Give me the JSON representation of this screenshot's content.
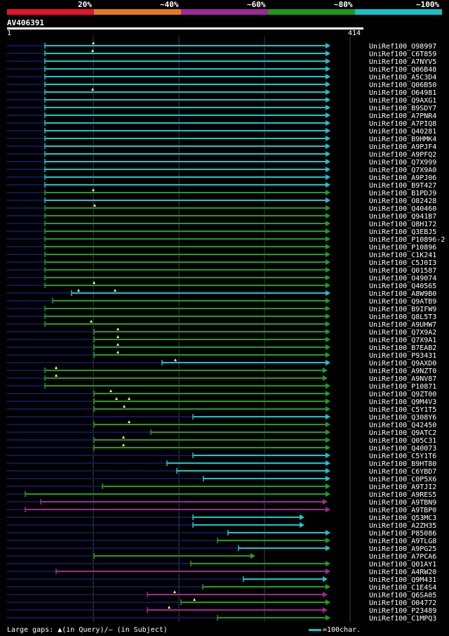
{
  "legend": [
    {
      "label": "20%",
      "color": "#e8132b"
    },
    {
      "label": "~40%",
      "color": "#e47a1c"
    },
    {
      "label": "~60%",
      "color": "#a0299a"
    },
    {
      "label": "~80%",
      "color": "#1a9a1a"
    },
    {
      "label": "~100%",
      "color": "#16c0c8"
    }
  ],
  "query": {
    "name": "AV406391",
    "start": "1",
    "end": "414"
  },
  "colors": {
    "cyan": "#16c8d0",
    "green": "#1ea01e",
    "purple": "#a0289a",
    "dark": "#0d1660",
    "grid": "#404040"
  },
  "hits": [
    {
      "name": "UniRef100_O98997",
      "color": "cyan",
      "start": 64,
      "end": 464,
      "marks": [
        133
      ]
    },
    {
      "name": "UniRef100_C6T859",
      "color": "cyan",
      "start": 64,
      "end": 464,
      "marks": [
        132
      ]
    },
    {
      "name": "UniRef100_A7NYV5",
      "color": "cyan",
      "start": 64,
      "end": 464,
      "marks": []
    },
    {
      "name": "UniRef100_Q06B48",
      "color": "cyan",
      "start": 64,
      "end": 464,
      "marks": []
    },
    {
      "name": "UniRef100_A5C3D4",
      "color": "cyan",
      "start": 64,
      "end": 464,
      "marks": []
    },
    {
      "name": "UniRef100_Q06B50",
      "color": "cyan",
      "start": 64,
      "end": 464,
      "marks": []
    },
    {
      "name": "UniRef100_O64981",
      "color": "cyan",
      "start": 64,
      "end": 464,
      "marks": [
        132
      ]
    },
    {
      "name": "UniRef100_Q9AXG1",
      "color": "cyan",
      "start": 64,
      "end": 464,
      "marks": []
    },
    {
      "name": "UniRef100_B9SDY7",
      "color": "cyan",
      "start": 64,
      "end": 464,
      "marks": []
    },
    {
      "name": "UniRef100_A7PNR4",
      "color": "cyan",
      "start": 64,
      "end": 464,
      "marks": []
    },
    {
      "name": "UniRef100_A7PIQ8",
      "color": "cyan",
      "start": 64,
      "end": 464,
      "marks": []
    },
    {
      "name": "UniRef100_Q40281",
      "color": "cyan",
      "start": 64,
      "end": 464,
      "marks": []
    },
    {
      "name": "UniRef100_B9HMK4",
      "color": "cyan",
      "start": 64,
      "end": 464,
      "marks": []
    },
    {
      "name": "UniRef100_A9PJF4",
      "color": "cyan",
      "start": 64,
      "end": 464,
      "marks": []
    },
    {
      "name": "UniRef100_A9PFQ2",
      "color": "cyan",
      "start": 64,
      "end": 464,
      "marks": []
    },
    {
      "name": "UniRef100_Q7X999",
      "color": "cyan",
      "start": 64,
      "end": 464,
      "marks": []
    },
    {
      "name": "UniRef100_Q7X9A0",
      "color": "cyan",
      "start": 64,
      "end": 464,
      "marks": []
    },
    {
      "name": "UniRef100_A9PJ06",
      "color": "cyan",
      "start": 64,
      "end": 464,
      "marks": []
    },
    {
      "name": "UniRef100_B9T427",
      "color": "cyan",
      "start": 64,
      "end": 464,
      "marks": []
    },
    {
      "name": "UniRef100_B1PDJ9",
      "color": "green",
      "start": 64,
      "end": 464,
      "marks": [
        133
      ]
    },
    {
      "name": "UniRef100_O82428",
      "color": "cyan",
      "start": 64,
      "end": 464,
      "marks": []
    },
    {
      "name": "UniRef100_Q40460",
      "color": "green",
      "start": 64,
      "end": 464,
      "marks": [
        135
      ]
    },
    {
      "name": "UniRef100_Q941B7",
      "color": "green",
      "start": 64,
      "end": 464,
      "marks": []
    },
    {
      "name": "UniRef100_Q8H172",
      "color": "green",
      "start": 64,
      "end": 464,
      "marks": []
    },
    {
      "name": "UniRef100_Q3EBJ5",
      "color": "green",
      "start": 64,
      "end": 464,
      "marks": []
    },
    {
      "name": "UniRef100_P10896-2",
      "color": "green",
      "start": 64,
      "end": 464,
      "marks": []
    },
    {
      "name": "UniRef100_P10896",
      "color": "green",
      "start": 64,
      "end": 464,
      "marks": []
    },
    {
      "name": "UniRef100_C1K241",
      "color": "green",
      "start": 64,
      "end": 464,
      "marks": []
    },
    {
      "name": "UniRef100_C5J0I3",
      "color": "green",
      "start": 64,
      "end": 464,
      "marks": []
    },
    {
      "name": "UniRef100_Q01587",
      "color": "green",
      "start": 64,
      "end": 464,
      "marks": []
    },
    {
      "name": "UniRef100_O49074",
      "color": "green",
      "start": 64,
      "end": 464,
      "marks": []
    },
    {
      "name": "UniRef100_Q40565",
      "color": "green",
      "start": 64,
      "end": 464,
      "marks": [
        134
      ]
    },
    {
      "name": "UniRef100_A8W9B0",
      "color": "cyan",
      "start": 102,
      "end": 464,
      "marks": [
        112,
        164
      ]
    },
    {
      "name": "UniRef100_Q9ATB9",
      "color": "green",
      "start": 75,
      "end": 464,
      "marks": []
    },
    {
      "name": "UniRef100_B9IFW9",
      "color": "green",
      "start": 64,
      "end": 464,
      "marks": []
    },
    {
      "name": "UniRef100_Q8L5T3",
      "color": "green",
      "start": 64,
      "end": 464,
      "marks": []
    },
    {
      "name": "UniRef100_A9UHW7",
      "color": "green",
      "start": 64,
      "end": 464,
      "marks": [
        130
      ]
    },
    {
      "name": "UniRef100_Q7X9A2",
      "color": "green",
      "start": 134,
      "end": 464,
      "marks": [
        168
      ]
    },
    {
      "name": "UniRef100_Q7X9A1",
      "color": "green",
      "start": 134,
      "end": 464,
      "marks": [
        168
      ]
    },
    {
      "name": "UniRef100_B7EAB2",
      "color": "green",
      "start": 134,
      "end": 464,
      "marks": [
        168
      ]
    },
    {
      "name": "UniRef100_P93431",
      "color": "green",
      "start": 134,
      "end": 464,
      "marks": [
        168
      ]
    },
    {
      "name": "UniRef100_Q9AXD0",
      "color": "cyan",
      "start": 231,
      "end": 464,
      "marks": [
        250
      ]
    },
    {
      "name": "UniRef100_A9NZT0",
      "color": "green",
      "start": 64,
      "end": 460,
      "marks": [
        80
      ]
    },
    {
      "name": "UniRef100_A9NV87",
      "color": "green",
      "start": 64,
      "end": 460,
      "marks": [
        80
      ]
    },
    {
      "name": "UniRef100_P10871",
      "color": "green",
      "start": 64,
      "end": 464,
      "marks": []
    },
    {
      "name": "UniRef100_Q9ZT00",
      "color": "green",
      "start": 134,
      "end": 464,
      "marks": [
        158
      ]
    },
    {
      "name": "UniRef100_Q9M4V3",
      "color": "green",
      "start": 134,
      "end": 464,
      "marks": [
        166,
        184
      ]
    },
    {
      "name": "UniRef100_C5Y1T5",
      "color": "green",
      "start": 134,
      "end": 464,
      "marks": [
        177
      ]
    },
    {
      "name": "UniRef100_Q308Y6",
      "color": "cyan",
      "start": 275,
      "end": 464,
      "marks": []
    },
    {
      "name": "UniRef100_Q42450",
      "color": "green",
      "start": 134,
      "end": 464,
      "marks": [
        184
      ]
    },
    {
      "name": "UniRef100_Q9ATC2",
      "color": "green",
      "start": 215,
      "end": 464,
      "marks": []
    },
    {
      "name": "UniRef100_Q05C31",
      "color": "green",
      "start": 134,
      "end": 464,
      "marks": [
        176
      ]
    },
    {
      "name": "UniRef100_Q40073",
      "color": "green",
      "start": 134,
      "end": 464,
      "marks": [
        176
      ]
    },
    {
      "name": "UniRef100_C5Y1T6",
      "color": "cyan",
      "start": 275,
      "end": 464,
      "marks": []
    },
    {
      "name": "UniRef100_B9HT80",
      "color": "cyan",
      "start": 238,
      "end": 464,
      "marks": []
    },
    {
      "name": "UniRef100_C6YBD7",
      "color": "cyan",
      "start": 252,
      "end": 464,
      "marks": []
    },
    {
      "name": "UniRef100_C0P5X6",
      "color": "cyan",
      "start": 290,
      "end": 464,
      "marks": []
    },
    {
      "name": "UniRef100_A9TJI2",
      "color": "green",
      "start": 146,
      "end": 464,
      "marks": []
    },
    {
      "name": "UniRef100_A9RES5",
      "color": "green",
      "start": 36,
      "end": 464,
      "marks": []
    },
    {
      "name": "UniRef100_A9TBN9",
      "color": "purple",
      "start": 58,
      "end": 460,
      "marks": []
    },
    {
      "name": "UniRef100_A9TBP0",
      "color": "purple",
      "start": 36,
      "end": 464,
      "marks": []
    },
    {
      "name": "UniRef100_Q53MC3",
      "color": "cyan",
      "start": 275,
      "end": 427,
      "marks": []
    },
    {
      "name": "UniRef100_A2ZH35",
      "color": "cyan",
      "start": 275,
      "end": 427,
      "marks": []
    },
    {
      "name": "UniRef100_P85086",
      "color": "cyan",
      "start": 325,
      "end": 464,
      "marks": []
    },
    {
      "name": "UniRef100_A9TLG8",
      "color": "green",
      "start": 310,
      "end": 464,
      "marks": []
    },
    {
      "name": "UniRef100_A9PG25",
      "color": "cyan",
      "start": 340,
      "end": 464,
      "marks": []
    },
    {
      "name": "UniRef100_A7PCA6",
      "color": "green",
      "start": 134,
      "end": 357,
      "marks": []
    },
    {
      "name": "UniRef100_Q01AY1",
      "color": "green",
      "start": 272,
      "end": 464,
      "marks": []
    },
    {
      "name": "UniRef100_A4RW20",
      "color": "purple",
      "start": 80,
      "end": 464,
      "marks": []
    },
    {
      "name": "UniRef100_Q9M431",
      "color": "cyan",
      "start": 347,
      "end": 460,
      "marks": []
    },
    {
      "name": "UniRef100_C1E4S4",
      "color": "green",
      "start": 289,
      "end": 464,
      "marks": []
    },
    {
      "name": "UniRef100_Q6SA05",
      "color": "purple",
      "start": 210,
      "end": 460,
      "marks": [
        249
      ]
    },
    {
      "name": "UniRef100_O04772",
      "color": "green",
      "start": 258,
      "end": 464,
      "marks": [
        277
      ]
    },
    {
      "name": "UniRef100_P23489",
      "color": "purple",
      "start": 210,
      "end": 460,
      "marks": [
        241
      ]
    },
    {
      "name": "UniRef100_C1MPQ3",
      "color": "green",
      "start": 310,
      "end": 464,
      "marks": []
    }
  ],
  "footer": {
    "gaps_text": "Large gaps: ▲(in Query)/– (in Subject)",
    "scale_text": "=100char."
  }
}
